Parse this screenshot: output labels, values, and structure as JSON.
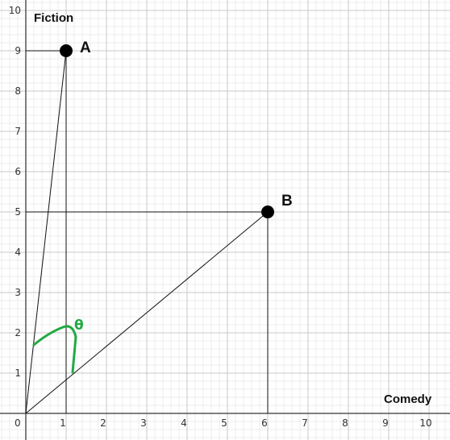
{
  "chart_data": {
    "type": "scatter",
    "xlabel": "Comedy",
    "ylabel": "Fiction",
    "xlim": [
      0,
      10.5
    ],
    "ylim": [
      0,
      10
    ],
    "x_ticks": [
      "0",
      "1",
      "2",
      "3",
      "4",
      "5",
      "6",
      "7",
      "8",
      "9",
      "10"
    ],
    "y_ticks": [
      "1",
      "2",
      "3",
      "4",
      "5",
      "6",
      "7",
      "8",
      "9",
      "10"
    ],
    "grid": true,
    "minor_grid": true,
    "points": [
      {
        "label": "A",
        "x": 1,
        "y": 9
      },
      {
        "label": "B",
        "x": 6,
        "y": 5
      }
    ],
    "vectors_from_origin": [
      "A",
      "B"
    ],
    "projection_lines": true,
    "angle_annotation": {
      "text": "θ",
      "color": "#22aa44"
    }
  }
}
